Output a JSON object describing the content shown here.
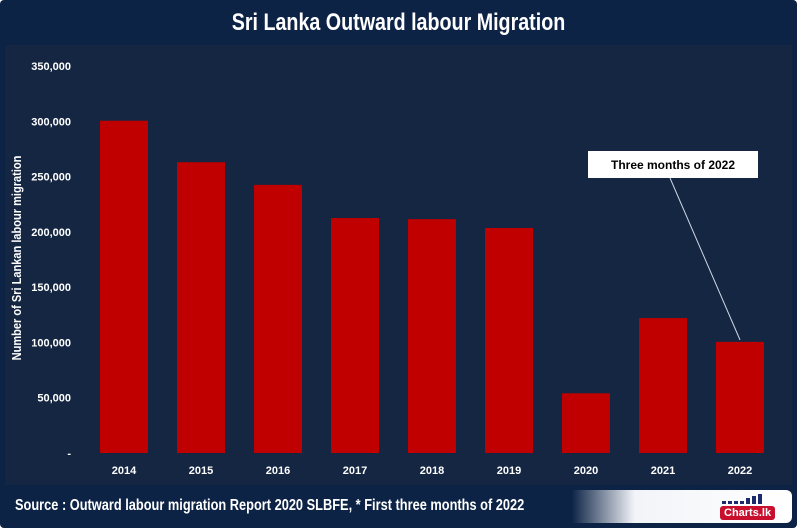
{
  "chart_data": {
    "type": "bar",
    "title": "Sri Lanka Outward labour Migration",
    "xlabel": "",
    "ylabel": "Number of Sri Lankan labour migration",
    "categories": [
      "2014",
      "2015",
      "2016",
      "2017",
      "2018",
      "2019",
      "2020",
      "2021",
      "2022"
    ],
    "values": [
      300500,
      263000,
      242500,
      212500,
      211500,
      203500,
      54000,
      122000,
      100500
    ],
    "ylim": [
      0,
      350000
    ],
    "yticks": [
      0,
      50000,
      100000,
      150000,
      200000,
      250000,
      300000,
      350000
    ],
    "ytick_labels": [
      "-",
      "50,000",
      "100,000",
      "150,000",
      "200,000",
      "250,000",
      "300,000",
      "350,000"
    ],
    "grid": false,
    "bar_color": "#c00000",
    "annotation": {
      "text": "Three months of 2022",
      "target": "2022"
    }
  },
  "footer": {
    "source": "Source : Outward labour migration Report 2020 SLBFE, * First three months of 2022",
    "logo": "Charts.lk"
  }
}
